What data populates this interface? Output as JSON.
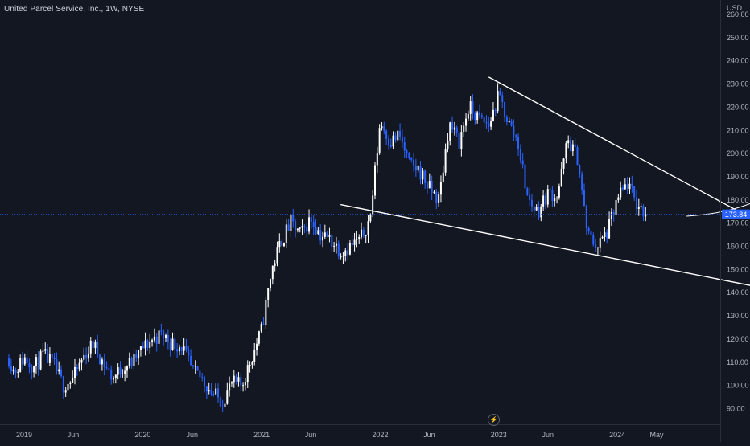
{
  "header": {
    "symbol_title": "United Parcel Service, Inc., 1W, NYSE",
    "currency": "USD"
  },
  "price_tag": {
    "value": "173.84",
    "color": "#2962ff"
  },
  "colors": {
    "background": "#131722",
    "up_candle": "#ffffff",
    "down_candle": "#2962ff",
    "drawing": "#ffffff",
    "axis_text": "#b2b5be"
  },
  "icons": {
    "replay": "lightning-icon"
  },
  "chart_data": {
    "type": "candlestick",
    "x_axis": {
      "type": "time",
      "tick_labels": [
        "2019",
        "Jun",
        "2020",
        "Jun",
        "2021",
        "Jun",
        "2022",
        "Jun",
        "2023",
        "Jun",
        "2024",
        "May"
      ],
      "tick_dates": [
        "2019-01",
        "2019-06",
        "2020-01",
        "2020-06",
        "2021-01",
        "2021-06",
        "2022-01",
        "2022-06",
        "2023-01",
        "2023-06",
        "2024-01",
        "2024-05"
      ]
    },
    "y_axis": {
      "tick_labels": [
        "260.00",
        "250.00",
        "240.00",
        "230.00",
        "220.00",
        "210.00",
        "200.00",
        "190.00",
        "180.00",
        "170.00",
        "160.00",
        "150.00",
        "140.00",
        "130.00",
        "120.00",
        "110.00",
        "100.00",
        "90.00"
      ],
      "tick_values": [
        260,
        250,
        240,
        230,
        220,
        210,
        200,
        190,
        180,
        170,
        160,
        150,
        140,
        130,
        120,
        110,
        100,
        90
      ],
      "range": [
        85,
        263
      ]
    },
    "last_price": 173.84,
    "price_path": [
      [
        "2018-11",
        117
      ],
      [
        "2018-12",
        106
      ],
      [
        "2019-01",
        112
      ],
      [
        "2019-02",
        108
      ],
      [
        "2019-03",
        113
      ],
      [
        "2019-04",
        109
      ],
      [
        "2019-05",
        100
      ],
      [
        "2019-06",
        103
      ],
      [
        "2019-07",
        112
      ],
      [
        "2019-08",
        118
      ],
      [
        "2019-09",
        110
      ],
      [
        "2019-10",
        103
      ],
      [
        "2019-11",
        108
      ],
      [
        "2019-12",
        110
      ],
      [
        "2020-01",
        116
      ],
      [
        "2020-02",
        120
      ],
      [
        "2020-03",
        122
      ],
      [
        "2020-04",
        118
      ],
      [
        "2020-05",
        117
      ],
      [
        "2020-06",
        106
      ],
      [
        "2020-07",
        103
      ],
      [
        "2020-08",
        97
      ],
      [
        "2020-09",
        93
      ],
      [
        "2020-10",
        101
      ],
      [
        "2020-11",
        100
      ],
      [
        "2020-12",
        112
      ],
      [
        "2021-01",
        124
      ],
      [
        "2021-02",
        150
      ],
      [
        "2021-03",
        162
      ],
      [
        "2021-04",
        170
      ],
      [
        "2021-05",
        165
      ],
      [
        "2021-06",
        172
      ],
      [
        "2021-07",
        165
      ],
      [
        "2021-08",
        163
      ],
      [
        "2021-09",
        158
      ],
      [
        "2021-10",
        160
      ],
      [
        "2021-11",
        163
      ],
      [
        "2021-12",
        172
      ],
      [
        "2022-01",
        214
      ],
      [
        "2022-02",
        205
      ],
      [
        "2022-03",
        208
      ],
      [
        "2022-04",
        195
      ],
      [
        "2022-05",
        193
      ],
      [
        "2022-06",
        185
      ],
      [
        "2022-07",
        180
      ],
      [
        "2022-08",
        213
      ],
      [
        "2022-09",
        205
      ],
      [
        "2022-10",
        220
      ],
      [
        "2022-11",
        215
      ],
      [
        "2022-12",
        212
      ],
      [
        "2023-01",
        225
      ],
      [
        "2023-02",
        213
      ],
      [
        "2023-03",
        205
      ],
      [
        "2023-04",
        180
      ],
      [
        "2023-05",
        175
      ],
      [
        "2023-06",
        183
      ],
      [
        "2023-07",
        182
      ],
      [
        "2023-08",
        206
      ],
      [
        "2023-09",
        198
      ],
      [
        "2023-10",
        165
      ],
      [
        "2023-11",
        160
      ],
      [
        "2023-12",
        166
      ],
      [
        "2024-01",
        180
      ],
      [
        "2024-02",
        187
      ],
      [
        "2024-03",
        178
      ],
      [
        "2024-04",
        173.84
      ]
    ],
    "annotations": [
      {
        "type": "trend-line",
        "from": [
          "2022-12",
          233
        ],
        "to": [
          "2025-07",
          162
        ]
      },
      {
        "type": "trend-line",
        "from": [
          "2021-09",
          178
        ],
        "to": [
          "2025-05",
          141
        ]
      },
      {
        "type": "curved-arrow",
        "from": [
          "2024-08",
          173
        ],
        "to": [
          "2025-10",
          228
        ]
      }
    ]
  }
}
